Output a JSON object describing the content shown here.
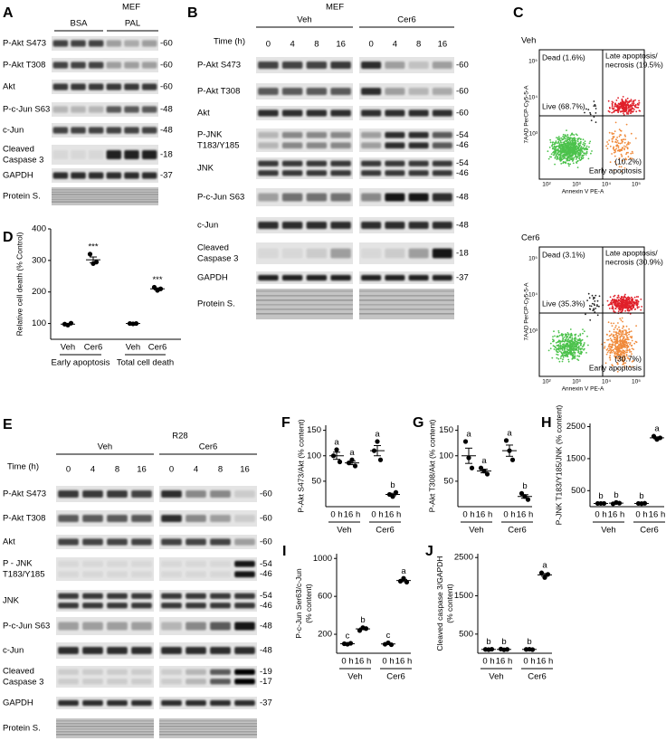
{
  "panels": {
    "A": {
      "letter": "A",
      "cell": "MEF",
      "groups": [
        "BSA",
        "PAL"
      ],
      "rows": [
        {
          "label": "P-Akt S473",
          "markers": [
            "-60"
          ]
        },
        {
          "label": "P-Akt T308",
          "markers": [
            "-60"
          ]
        },
        {
          "label": "Akt",
          "markers": [
            "-60"
          ]
        },
        {
          "label": "P-c-Jun S63",
          "markers": [
            "-48"
          ]
        },
        {
          "label": "c-Jun",
          "markers": [
            "-48"
          ]
        },
        {
          "label": [
            "Cleaved",
            "Caspase 3"
          ],
          "markers": [
            "-18"
          ]
        },
        {
          "label": "GAPDH",
          "markers": [
            "-37"
          ]
        },
        {
          "label": "Protein S."
        }
      ]
    },
    "B": {
      "letter": "B",
      "cell": "MEF",
      "groups": [
        "Veh",
        "Cer6"
      ],
      "time_label": "Time (h)",
      "times": [
        "0",
        "4",
        "8",
        "16",
        "0",
        "4",
        "8",
        "16"
      ],
      "rows": [
        {
          "label": "P-Akt S473",
          "markers": [
            "-60"
          ]
        },
        {
          "label": "P-Akt T308",
          "markers": [
            "-60"
          ]
        },
        {
          "label": "Akt",
          "markers": [
            "-60"
          ]
        },
        {
          "label": [
            "P-JNK",
            "T183/Y185"
          ],
          "markers": [
            "-54",
            "-46"
          ]
        },
        {
          "label": "JNK",
          "markers": [
            "-54",
            "-46"
          ]
        },
        {
          "label": "P-c-Jun S63",
          "markers": [
            "-48"
          ]
        },
        {
          "label": "c-Jun",
          "markers": [
            "-48"
          ]
        },
        {
          "label": [
            "Cleaved",
            "Caspase 3"
          ],
          "markers": [
            "-18"
          ]
        },
        {
          "label": "GAPDH",
          "markers": [
            "-37"
          ]
        },
        {
          "label": "Protein S."
        }
      ]
    },
    "C": {
      "letter": "C",
      "plots": [
        {
          "title": "Veh",
          "dead": "Dead (1.6%)",
          "late": [
            "Late apoptosis/",
            "necrosis (19.5%)"
          ],
          "live": "Live (68.7%)",
          "early": [
            "(10.2%)",
            "Early apoptosis"
          ],
          "xlabel": "Annexin V PE-A",
          "ylabel": "7AAD PerCP-Cy5-5-A",
          "x_tick_labels": [
            "10²",
            "10³",
            "10⁴",
            "10⁵"
          ],
          "y_tick_labels": [
            "10³",
            "10⁴",
            "10⁵"
          ]
        },
        {
          "title": "Cer6",
          "dead": "Dead (3.1%)",
          "late": [
            "Late apoptosis/",
            "necrosis (30.9%)"
          ],
          "live": "Live (35.3%)",
          "early": [
            "(30.7%)",
            "Early apoptosis"
          ],
          "xlabel": "Annexin V PE-A",
          "ylabel": "7AAD PerCP-Cy5-5-A",
          "x_tick_labels": [
            "10²",
            "10³",
            "10⁴",
            "10⁵"
          ],
          "y_tick_labels": [
            "10³",
            "10⁴",
            "10⁵"
          ]
        }
      ]
    },
    "E": {
      "letter": "E",
      "cell": "R28",
      "groups": [
        "Veh",
        "Cer6"
      ],
      "time_label": "Time (h)",
      "times": [
        "0",
        "4",
        "8",
        "16",
        "0",
        "4",
        "8",
        "16"
      ],
      "rows": [
        {
          "label": "P-Akt S473",
          "markers": [
            "-60"
          ]
        },
        {
          "label": "P-Akt T308",
          "markers": [
            "-60"
          ]
        },
        {
          "label": "Akt",
          "markers": [
            "-60"
          ]
        },
        {
          "label": [
            "P - JNK",
            "T183/Y185"
          ],
          "markers": [
            "-54",
            "-46"
          ]
        },
        {
          "label": "JNK",
          "markers": [
            "-54",
            "-46"
          ]
        },
        {
          "label": "P-c-Jun S63",
          "markers": [
            "-48"
          ]
        },
        {
          "label": "c-Jun",
          "markers": [
            "-48"
          ]
        },
        {
          "label": [
            "Cleaved",
            "Caspase 3"
          ],
          "markers": [
            "-19",
            "-17"
          ]
        },
        {
          "label": "GAPDH",
          "markers": [
            "-37"
          ]
        },
        {
          "label": "Protein S."
        }
      ]
    }
  },
  "chart_data": [
    {
      "type": "dot",
      "letter": "D",
      "ylabel": "Relative cell death (% Control)",
      "categories": [
        "Veh",
        "Cer6",
        "Veh",
        "Cer6"
      ],
      "groups": [
        "Early apoptosis",
        "Total cell death"
      ],
      "values": [
        [
          98,
          95,
          101
        ],
        [
          320,
          290,
          295
        ],
        [
          100,
          99,
          100
        ],
        [
          215,
          205,
          210
        ]
      ],
      "mean": [
        98,
        302,
        100,
        210
      ],
      "sem": [
        2,
        9,
        0.5,
        3
      ],
      "point_labels": [
        null,
        "***",
        null,
        "***"
      ],
      "ylim": [
        50,
        400
      ],
      "yticks": [
        100,
        200,
        300,
        400
      ]
    },
    {
      "type": "dot",
      "letter": "F",
      "ylabel": "P-Akt S473/Akt (% content)",
      "categories": [
        "0 h",
        "16 h",
        "0 h",
        "16 h"
      ],
      "groups": [
        "Veh",
        "Cer6"
      ],
      "values": [
        [
          100,
          112,
          88
        ],
        [
          86,
          92,
          80
        ],
        [
          110,
          128,
          92
        ],
        [
          24,
          20,
          28
        ]
      ],
      "mean": [
        100,
        86,
        110,
        24
      ],
      "sem": [
        7,
        3.5,
        10,
        2.3
      ],
      "point_labels": [
        "a",
        "a",
        "a",
        "b"
      ],
      "ylim": [
        0,
        160
      ],
      "yticks": [
        50,
        100,
        150
      ]
    },
    {
      "type": "dot",
      "letter": "G",
      "ylabel": "P-Akt T308/Akt (% content)",
      "categories": [
        "0 h",
        "16 h",
        "0 h",
        "16 h"
      ],
      "groups": [
        "Veh",
        "Cer6"
      ],
      "values": [
        [
          128,
          96,
          76
        ],
        [
          76,
          70,
          64
        ],
        [
          130,
          110,
          92
        ],
        [
          26,
          20,
          14
        ]
      ],
      "mean": [
        100,
        70,
        110,
        20
      ],
      "sem": [
        15,
        3.5,
        11,
        3.5
      ],
      "point_labels": [
        "a",
        "a",
        "a",
        "b"
      ],
      "ylim": [
        0,
        160
      ],
      "yticks": [
        50,
        100,
        150
      ]
    },
    {
      "type": "dot",
      "letter": "H",
      "ylabel": "P-JNK T183/Y185/JNK (% content)",
      "categories": [
        "0 h",
        "16 h",
        "0 h",
        "16 h"
      ],
      "groups": [
        "Veh",
        "Cer6"
      ],
      "values": [
        [
          100,
          100,
          100
        ],
        [
          90,
          130,
          110
        ],
        [
          100,
          95,
          105
        ],
        [
          2200,
          2100,
          2150
        ]
      ],
      "mean": [
        100,
        110,
        100,
        2150
      ],
      "sem": [
        2,
        12,
        3,
        30
      ],
      "point_labels": [
        "b",
        "b",
        "b",
        "a"
      ],
      "ylim": [
        0,
        2600
      ],
      "yticks": [
        500,
        1500,
        2500
      ]
    },
    {
      "type": "dot",
      "letter": "I",
      "ylabel": [
        "P-c-Jun Ser63/c-Jun",
        "(% content)"
      ],
      "categories": [
        "0 h",
        "16 h",
        "0 h",
        "16 h"
      ],
      "groups": [
        "Veh",
        "Cer6"
      ],
      "values": [
        [
          100,
          95,
          105
        ],
        [
          240,
          270,
          260
        ],
        [
          95,
          110,
          90
        ],
        [
          760,
          790,
          750
        ]
      ],
      "mean": [
        100,
        257,
        98,
        767
      ],
      "sem": [
        3,
        9,
        6,
        12
      ],
      "point_labels": [
        "c",
        "b",
        "c",
        "a"
      ],
      "ylim": [
        0,
        1050
      ],
      "yticks": [
        200,
        600,
        1000
      ]
    },
    {
      "type": "dot",
      "letter": "J",
      "ylabel": [
        "Cleaved caspase 3/GAPDH",
        "(% content)"
      ],
      "categories": [
        "0 h",
        "16 h",
        "0 h",
        "16 h"
      ],
      "groups": [
        "Veh",
        "Cer6"
      ],
      "values": [
        [
          100,
          95,
          105
        ],
        [
          110,
          90,
          100
        ],
        [
          100,
          105,
          95
        ],
        [
          2100,
          1980,
          2060
        ]
      ],
      "mean": [
        100,
        100,
        100,
        2047
      ],
      "sem": [
        3,
        6,
        3,
        35
      ],
      "point_labels": [
        "b",
        "b",
        "b",
        "a"
      ],
      "ylim": [
        0,
        2600
      ],
      "yticks": [
        500,
        1500,
        2500
      ]
    }
  ]
}
